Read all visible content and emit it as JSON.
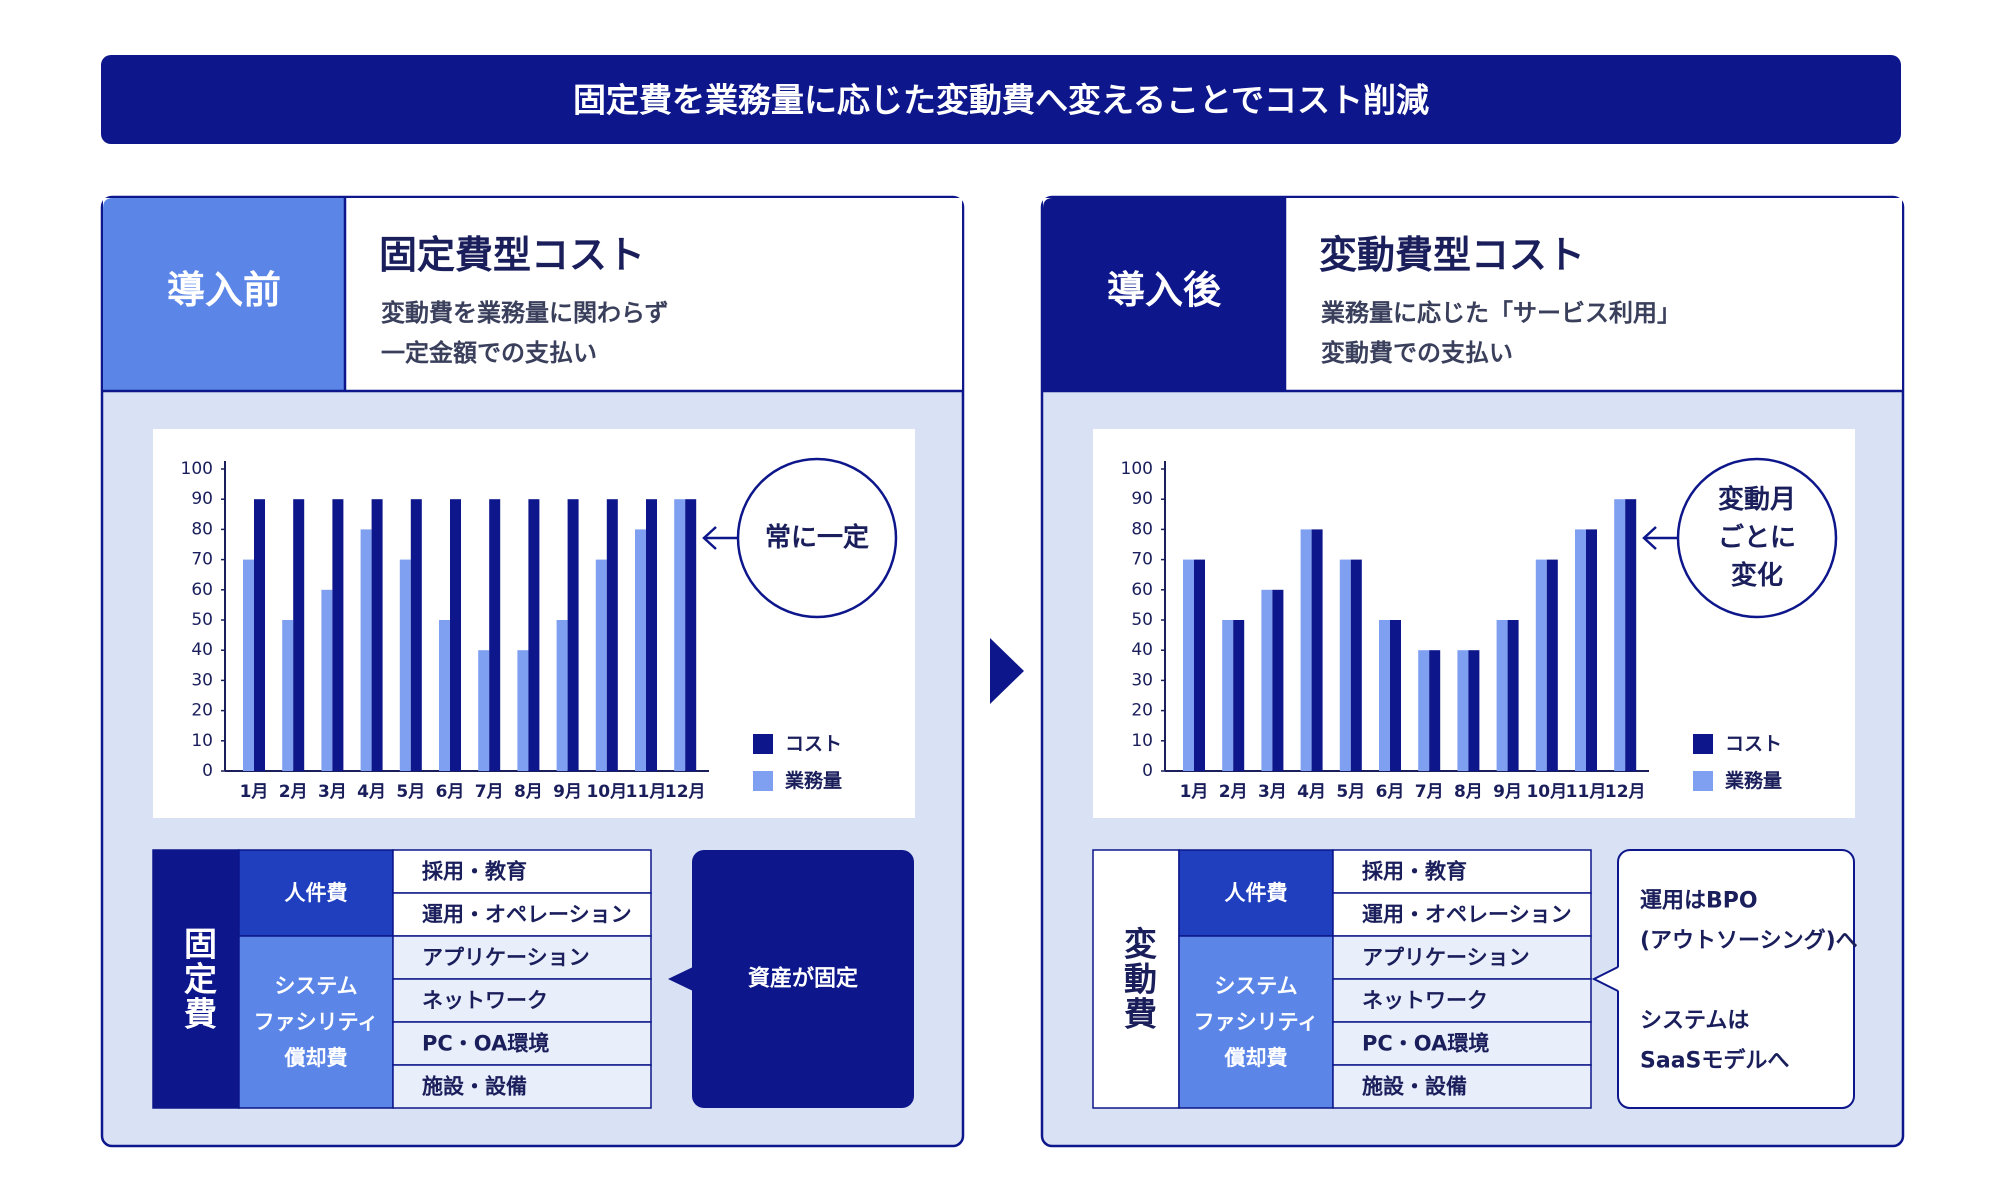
{
  "banner": {
    "title": "固定費を業務量に応じた変動費へ変えることでコスト削減"
  },
  "panels": [
    {
      "label": "導入前",
      "heading": "固定費型コスト",
      "description": [
        "変動費を業務量に関わらず",
        "一定金額での支払い"
      ],
      "table": {
        "title": "固定費",
        "groups": [
          {
            "name": [
              "人件費"
            ],
            "items": [
              "採用・教育",
              "運用・オペレーション"
            ]
          },
          {
            "name": [
              "システム",
              "ファシリティ",
              "償却費"
            ],
            "items": [
              "アプリケーション",
              "ネットワーク",
              "PC・OA環境",
              "施設・設備"
            ]
          }
        ]
      },
      "callout": [
        [
          "資産が固定"
        ]
      ]
    },
    {
      "label": "導入後",
      "heading": "変動費型コスト",
      "description": [
        "業務量に応じた「サービス利用」",
        "変動費での支払い"
      ],
      "table": {
        "title": "変動費",
        "groups": [
          {
            "name": [
              "人件費"
            ],
            "items": [
              "採用・教育",
              "運用・オペレーション"
            ]
          },
          {
            "name": [
              "システム",
              "ファシリティ",
              "償却費"
            ],
            "items": [
              "アプリケーション",
              "ネットワーク",
              "PC・OA環境",
              "施設・設備"
            ]
          }
        ]
      },
      "callout": [
        [
          "運用はBPO",
          "(アウトソーシング)へ"
        ],
        [
          "システムは",
          "SaaSモデルへ"
        ]
      ]
    }
  ],
  "chart_data": [
    {
      "type": "bar",
      "categories": [
        "1月",
        "2月",
        "3月",
        "4月",
        "5月",
        "6月",
        "7月",
        "8月",
        "9月",
        "10月",
        "11月",
        "12月"
      ],
      "series": [
        {
          "name": "コスト",
          "color": "#0d168a",
          "values": [
            90,
            90,
            90,
            90,
            90,
            90,
            90,
            90,
            90,
            90,
            90,
            90
          ]
        },
        {
          "name": "業務量",
          "color": "#7f9ff0",
          "values": [
            70,
            50,
            60,
            80,
            70,
            50,
            40,
            40,
            50,
            70,
            80,
            90
          ]
        }
      ],
      "ylim": [
        0,
        100
      ],
      "yticks": [
        0,
        10,
        20,
        30,
        40,
        50,
        60,
        70,
        80,
        90,
        100
      ],
      "annotation": [
        "常に一定"
      ]
    },
    {
      "type": "bar",
      "categories": [
        "1月",
        "2月",
        "3月",
        "4月",
        "5月",
        "6月",
        "7月",
        "8月",
        "9月",
        "10月",
        "11月",
        "12月"
      ],
      "series": [
        {
          "name": "コスト",
          "color": "#0d168a",
          "values": [
            70,
            50,
            60,
            80,
            70,
            50,
            40,
            40,
            50,
            70,
            80,
            90
          ]
        },
        {
          "name": "業務量",
          "color": "#7f9ff0",
          "values": [
            70,
            50,
            60,
            80,
            70,
            50,
            40,
            40,
            50,
            70,
            80,
            90
          ]
        }
      ],
      "ylim": [
        0,
        100
      ],
      "yticks": [
        0,
        10,
        20,
        30,
        40,
        50,
        60,
        70,
        80,
        90,
        100
      ],
      "annotation": [
        "変動月",
        "ごとに",
        "変化"
      ]
    }
  ]
}
